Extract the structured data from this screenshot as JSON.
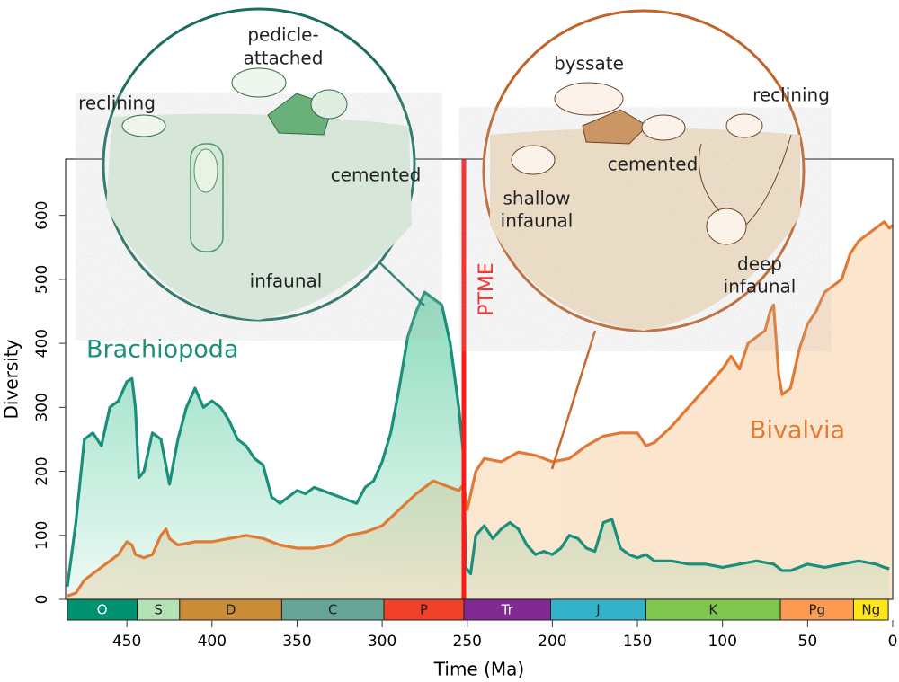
{
  "chart_data": {
    "type": "area",
    "xlabel": "Time (Ma)",
    "ylabel": "Diversity",
    "xlim": [
      486,
      0
    ],
    "ylim": [
      0,
      688
    ],
    "xticks": [
      450,
      400,
      350,
      300,
      250,
      200,
      150,
      100,
      50,
      0
    ],
    "yticks": [
      0,
      100,
      200,
      300,
      400,
      500,
      600
    ],
    "grid": false,
    "series": [
      {
        "name": "Brachiopoda",
        "color": "#1b8f7a",
        "x": [
          485,
          480,
          475,
          470,
          465,
          460,
          455,
          450,
          447,
          445,
          443,
          440,
          435,
          430,
          425,
          420,
          415,
          410,
          405,
          400,
          395,
          390,
          385,
          380,
          375,
          370,
          365,
          360,
          355,
          350,
          345,
          340,
          335,
          330,
          325,
          320,
          315,
          310,
          305,
          300,
          295,
          290,
          285,
          280,
          275,
          270,
          265,
          260,
          255,
          252,
          251,
          248,
          245,
          240,
          235,
          230,
          225,
          220,
          215,
          210,
          205,
          200,
          195,
          190,
          185,
          180,
          175,
          170,
          165,
          160,
          155,
          150,
          145,
          140,
          130,
          120,
          110,
          100,
          90,
          80,
          70,
          65,
          60,
          50,
          40,
          30,
          20,
          10,
          5,
          2
        ],
        "values": [
          20,
          120,
          250,
          260,
          240,
          300,
          310,
          340,
          345,
          300,
          190,
          200,
          260,
          250,
          180,
          250,
          300,
          330,
          300,
          310,
          300,
          280,
          250,
          240,
          220,
          210,
          160,
          150,
          160,
          170,
          165,
          175,
          170,
          165,
          160,
          155,
          150,
          175,
          185,
          215,
          260,
          330,
          410,
          450,
          480,
          470,
          460,
          400,
          300,
          220,
          50,
          40,
          100,
          115,
          95,
          110,
          120,
          110,
          85,
          70,
          75,
          70,
          80,
          100,
          95,
          80,
          75,
          120,
          125,
          80,
          70,
          65,
          70,
          60,
          60,
          55,
          55,
          50,
          55,
          60,
          55,
          45,
          45,
          55,
          50,
          55,
          60,
          55,
          50,
          48
        ]
      },
      {
        "name": "Bivalvia",
        "color": "#e07a35",
        "x": [
          485,
          480,
          475,
          470,
          465,
          460,
          455,
          450,
          447,
          445,
          440,
          435,
          430,
          427,
          425,
          420,
          410,
          400,
          390,
          380,
          370,
          360,
          350,
          340,
          330,
          320,
          310,
          300,
          290,
          280,
          270,
          260,
          255,
          252,
          250,
          245,
          240,
          230,
          220,
          210,
          200,
          190,
          180,
          170,
          160,
          150,
          145,
          140,
          130,
          120,
          110,
          100,
          95,
          90,
          85,
          80,
          75,
          72,
          70,
          67,
          65,
          60,
          55,
          50,
          45,
          40,
          30,
          25,
          20,
          10,
          5,
          2,
          0
        ],
        "values": [
          5,
          10,
          30,
          40,
          50,
          60,
          70,
          90,
          85,
          70,
          65,
          70,
          100,
          110,
          95,
          85,
          90,
          90,
          95,
          100,
          95,
          85,
          80,
          80,
          85,
          100,
          105,
          115,
          140,
          165,
          185,
          175,
          170,
          180,
          140,
          200,
          220,
          215,
          230,
          225,
          215,
          220,
          240,
          255,
          260,
          260,
          240,
          245,
          270,
          300,
          330,
          360,
          380,
          360,
          400,
          410,
          420,
          450,
          460,
          350,
          320,
          330,
          390,
          430,
          450,
          480,
          500,
          540,
          560,
          580,
          590,
          580,
          585
        ]
      }
    ],
    "periods": [
      {
        "name": "O",
        "start": 485,
        "end": 444,
        "color": "#009270",
        "text_color": "#ffffff"
      },
      {
        "name": "S",
        "start": 444,
        "end": 419,
        "color": "#b3e1b6",
        "text_color": "#222222"
      },
      {
        "name": "D",
        "start": 419,
        "end": 359,
        "color": "#cb8c37",
        "text_color": "#222222"
      },
      {
        "name": "C",
        "start": 359,
        "end": 299,
        "color": "#67a599",
        "text_color": "#222222"
      },
      {
        "name": "P",
        "start": 299,
        "end": 252,
        "color": "#f04028",
        "text_color": "#222222"
      },
      {
        "name": "Tr",
        "start": 252,
        "end": 201,
        "color": "#812b92",
        "text_color": "#ffffff"
      },
      {
        "name": "J",
        "start": 201,
        "end": 145,
        "color": "#34b2c9",
        "text_color": "#222222"
      },
      {
        "name": "K",
        "start": 145,
        "end": 66,
        "color": "#7fc64e",
        "text_color": "#222222"
      },
      {
        "name": "Pg",
        "start": 66,
        "end": 23,
        "color": "#fd9a52",
        "text_color": "#222222"
      },
      {
        "name": "Ng",
        "start": 23,
        "end": 2.6,
        "color": "#ffe619",
        "text_color": "#222222"
      }
    ],
    "ptme": {
      "value": 252,
      "label": "PTME",
      "color": "#ff1a1a"
    },
    "brachiopoda_inset": [
      "pedicle-",
      "attached",
      "reclining",
      "cemented",
      "infaunal"
    ],
    "bivalvia_inset": [
      "byssate",
      "reclining",
      "cemented",
      "shallow",
      "infaunal",
      "deep",
      "infaunal"
    ]
  }
}
